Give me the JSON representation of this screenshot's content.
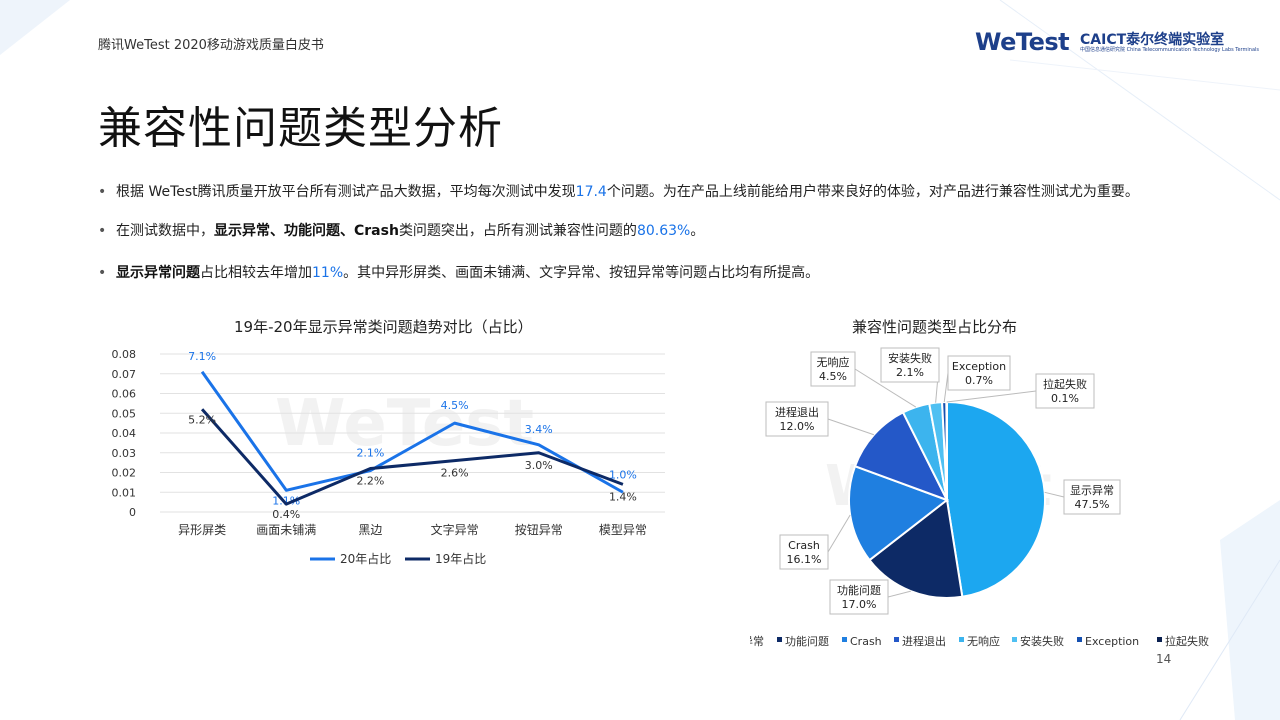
{
  "header": {
    "doc_title": "腾讯WeTest   2020移动游戏质量白皮书",
    "logo_wetest": "WeTest",
    "logo_caict": "CAICT泰尔终端实验室",
    "logo_caict_sub": "中国信息通信研究院  China Telecommunication Technology Labs Terminals"
  },
  "page_title": "兼容性问题类型分析",
  "bullets": [
    {
      "pre": "根据 WeTest腾讯质量开放平台所有测试产品大数据，平均每次测试中发现",
      "hl": "17.4",
      "post": "个问题。为在产品上线前能给用户带来良好的体验，对产品进行兼容性测试尤为重要。"
    },
    {
      "pre": "在测试数据中，",
      "b1": "显示异常、功能问题、Crash",
      "mid": "类问题突出，占所有测试兼容性问题的",
      "hl": "80.63%",
      "post": "。"
    },
    {
      "b1": "显示异常问题",
      "mid": "占比相较去年增加",
      "hl": "11%",
      "post": "。其中异形屏类、画面未铺满、文字异常、按钮异常等问题占比均有所提高。"
    }
  ],
  "page_number": "14",
  "chart_data": [
    {
      "type": "line",
      "title": "19年-20年显示异常类问题趋势对比（占比）",
      "categories": [
        "异形屏类",
        "画面未铺满",
        "黑边",
        "文字异常",
        "按钮异常",
        "模型异常"
      ],
      "ylim": [
        0,
        0.08
      ],
      "yticks": [
        "0.08",
        "0.07",
        "0.06",
        "0.05",
        "0.04",
        "0.03",
        "0.02",
        "0.01",
        "0"
      ],
      "grid": true,
      "legend_position": "bottom",
      "series": [
        {
          "name": "20年占比",
          "color": "#1a73e8",
          "values": [
            0.071,
            0.011,
            0.021,
            0.045,
            0.034,
            0.01
          ],
          "labels": [
            "7.1%",
            "1.1%",
            "2.1%",
            "4.5%",
            "3.4%",
            "1.0%"
          ]
        },
        {
          "name": "19年占比",
          "color": "#0d2a66",
          "values": [
            0.052,
            0.004,
            0.022,
            0.026,
            0.03,
            0.014
          ],
          "labels": [
            "5.2%",
            "0.4%",
            "2.2%",
            "2.6%",
            "3.0%",
            "1.4%"
          ]
        }
      ]
    },
    {
      "type": "pie",
      "title": "兼容性问题类型占比分布",
      "legend_position": "bottom",
      "slices": [
        {
          "name": "显示异常",
          "value": 47.5,
          "label": "47.5%",
          "color": "#1ca7f0"
        },
        {
          "name": "功能问题",
          "value": 17.0,
          "label": "17.0%",
          "color": "#0d2a66"
        },
        {
          "name": "Crash",
          "value": 16.1,
          "label": "16.1%",
          "color": "#1f7fe0"
        },
        {
          "name": "进程退出",
          "value": 12.0,
          "label": "12.0%",
          "color": "#2458c8"
        },
        {
          "name": "无响应",
          "value": 4.5,
          "label": "4.5%",
          "color": "#3cb4ee"
        },
        {
          "name": "安装失败",
          "value": 2.1,
          "label": "2.1%",
          "color": "#4fc0f2"
        },
        {
          "name": "Exception",
          "value": 0.7,
          "label": "0.7%",
          "color": "#1550b0"
        },
        {
          "name": "拉起失败",
          "value": 0.1,
          "label": "0.1%",
          "color": "#0a2050"
        }
      ]
    }
  ]
}
